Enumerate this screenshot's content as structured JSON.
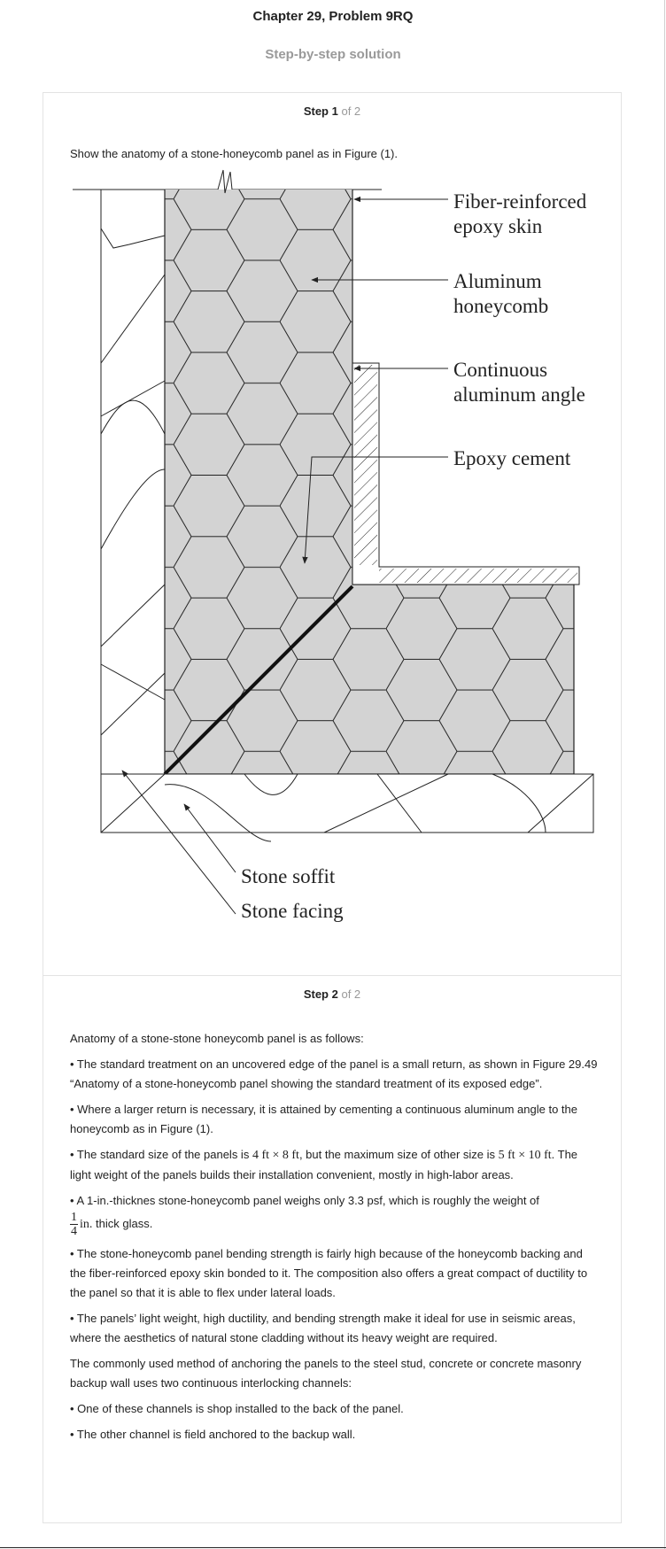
{
  "header": {
    "chapter_title": "Chapter 29, Problem 9RQ",
    "subtitle": "Step-by-step solution"
  },
  "steps": [
    {
      "label": "Step 1",
      "of": "of 2"
    },
    {
      "label": "Step 2",
      "of": "of 2"
    }
  ],
  "step1": {
    "intro": "Show the anatomy of a stone-honeycomb panel as in Figure (1).",
    "figure_labels": {
      "fiber_1": "Fiber-reinforced",
      "fiber_2": "epoxy skin",
      "alu_1": "Aluminum",
      "alu_2": "honeycomb",
      "angle_1": "Continuous",
      "angle_2": "aluminum angle",
      "epoxy": "Epoxy cement",
      "soffit": "Stone soffit",
      "facing": "Stone facing"
    }
  },
  "step2": {
    "p1": "Anatomy of a stone-stone honeycomb panel is as follows:",
    "p2": "• The standard treatment on an uncovered edge of the panel is a small return, as shown in Figure 29.49 “Anatomy of a stone-honeycomb panel showing the standard treatment of its exposed edge”.",
    "p3": "• Where a larger return is necessary, it is attained by cementing a continuous aluminum angle to the honeycomb as in Figure (1).",
    "p4_a": "• The standard size of the panels is ",
    "p4_math1": "4 ft × 8 ft",
    "p4_b": ", but the maximum size of other size is ",
    "p4_math2": "5 ft × 10 ft",
    "p4_c": ". The light weight of the panels builds their installation convenient, mostly in high-labor areas.",
    "p5_a": "• A 1-in.-thicknes stone-honeycomb panel weighs only 3.3 psf, which is roughly the weight of",
    "p5_frac_num": "1",
    "p5_frac_den": "4",
    "p5_unit": "in.",
    "p5_b": " thick glass.",
    "p6": "• The stone-honeycomb panel bending strength is fairly high because of the honeycomb backing and the fiber-reinforced epoxy skin bonded to it. The composition also offers a great compact of ductility to the panel so that it is able to flex under lateral loads.",
    "p7": "• The panels’ light weight, high ductility, and bending strength make it ideal for use in seismic areas, where the aesthetics of natural stone cladding without its heavy weight are required.",
    "p8": "The commonly used method of anchoring the panels to the steel stud, concrete or concrete masonry backup wall uses two continuous interlocking channels:",
    "p9": "• One of these channels is shop installed to the back of the panel.",
    "p10": "• The other channel is field anchored to the backup wall."
  }
}
